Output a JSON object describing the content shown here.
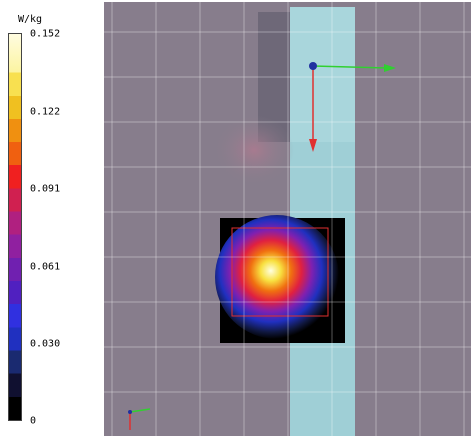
{
  "colorbar": {
    "unit": "W/kg",
    "ticks": [
      "0.152",
      "0.122",
      "0.091",
      "0.061",
      "0.030",
      "0"
    ]
  }
}
